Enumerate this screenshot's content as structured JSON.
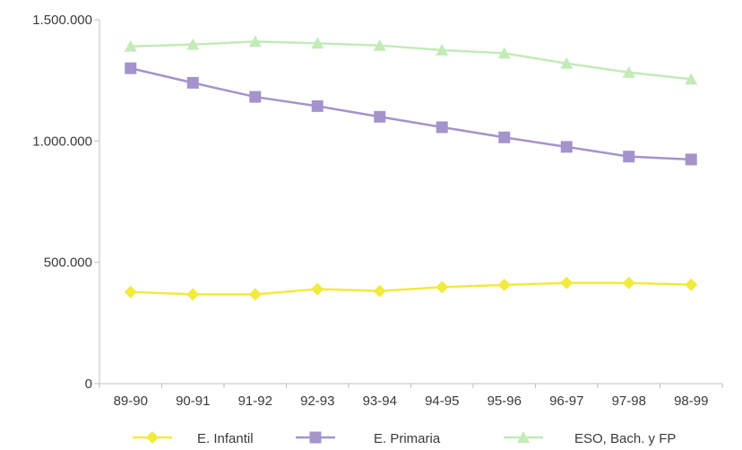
{
  "chart_data": {
    "type": "line",
    "title": "",
    "xlabel": "",
    "ylabel": "",
    "categories": [
      "89-90",
      "90-91",
      "91-92",
      "92-93",
      "93-94",
      "94-95",
      "95-96",
      "96-97",
      "97-98",
      "98-99"
    ],
    "ylim": [
      0,
      1500000
    ],
    "y_ticks": [
      {
        "value": 0,
        "label": "0"
      },
      {
        "value": 500000,
        "label": "500.000"
      },
      {
        "value": 1000000,
        "label": "1.000.000"
      },
      {
        "value": 1500000,
        "label": "1.500.000"
      }
    ],
    "grid": false,
    "legend_position": "bottom",
    "series": [
      {
        "name": "E. Infantil",
        "marker": "diamond",
        "color": "#f2ea3c",
        "values": [
          378000,
          368000,
          368000,
          390000,
          382000,
          398000,
          407000,
          415000,
          415000,
          408000
        ]
      },
      {
        "name": "E. Primaria",
        "marker": "square",
        "color": "#a593cc",
        "values": [
          1300000,
          1240000,
          1182000,
          1144000,
          1100000,
          1057000,
          1015000,
          976000,
          936000,
          924000
        ]
      },
      {
        "name": "ESO, Bach. y FP",
        "marker": "triangle",
        "color": "#c3ebb8",
        "values": [
          1390000,
          1398000,
          1410000,
          1403000,
          1394000,
          1375000,
          1362000,
          1320000,
          1283000,
          1255000
        ]
      }
    ]
  }
}
